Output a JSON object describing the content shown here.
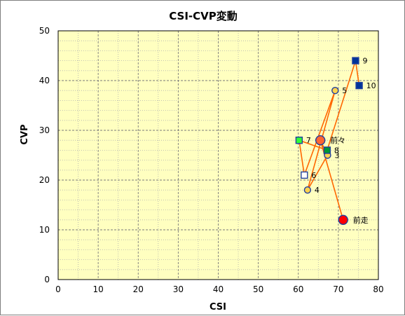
{
  "chart_data": {
    "type": "scatter",
    "title": "CSI-CVP変動",
    "xlabel": "CSI",
    "ylabel": "CVP",
    "xlim": [
      0,
      80
    ],
    "ylim": [
      0,
      50
    ],
    "x_ticks": [
      0,
      10,
      20,
      30,
      40,
      50,
      60,
      70,
      80
    ],
    "y_ticks": [
      0,
      10,
      20,
      30,
      40,
      50
    ],
    "grid": true,
    "plot_background": "#ffffc0",
    "line_color": "#ff6600",
    "points": [
      {
        "label": "前走",
        "x": 71.2,
        "y": 12,
        "marker": "circle",
        "fill": "#ff0000",
        "stroke": "#1f3fa0",
        "size": "large"
      },
      {
        "label": "前々",
        "x": 65.5,
        "y": 28,
        "marker": "circle",
        "fill": "#ff6633",
        "stroke": "#1f3fa0",
        "size": "large"
      },
      {
        "label": "3",
        "x": 67.3,
        "y": 25,
        "marker": "circle",
        "fill": "#ffd24d",
        "stroke": "#1f3fa0",
        "size": "small"
      },
      {
        "label": "4",
        "x": 62.3,
        "y": 18,
        "marker": "circle",
        "fill": "#ffd24d",
        "stroke": "#1f3fa0",
        "size": "small"
      },
      {
        "label": "5",
        "x": 69.2,
        "y": 38,
        "marker": "circle",
        "fill": "#ffd24d",
        "stroke": "#1f3fa0",
        "size": "small"
      },
      {
        "label": "6",
        "x": 61.5,
        "y": 21,
        "marker": "square",
        "fill": "#ffffff",
        "stroke": "#1f3fa0",
        "size": "small"
      },
      {
        "label": "7",
        "x": 60.2,
        "y": 28,
        "marker": "square",
        "fill": "#33ff33",
        "stroke": "#1f3fa0",
        "size": "small"
      },
      {
        "label": "8",
        "x": 67.2,
        "y": 26,
        "marker": "square",
        "fill": "#009933",
        "stroke": "#1f3fa0",
        "size": "small"
      },
      {
        "label": "9",
        "x": 74.3,
        "y": 44,
        "marker": "square",
        "fill": "#003399",
        "stroke": "#1f3fa0",
        "size": "small"
      },
      {
        "label": "10",
        "x": 75.2,
        "y": 39,
        "marker": "square",
        "fill": "#003399",
        "stroke": "#1f3fa0",
        "size": "small"
      }
    ]
  }
}
